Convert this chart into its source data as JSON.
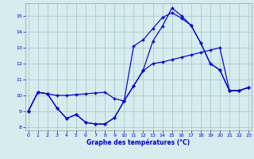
{
  "xlabel": "Graphe des températures (°C)",
  "xlim": [
    -0.3,
    23.3
  ],
  "ylim": [
    7.8,
    15.8
  ],
  "yticks": [
    8,
    9,
    10,
    11,
    12,
    13,
    14,
    15
  ],
  "xticks": [
    0,
    1,
    2,
    3,
    4,
    5,
    6,
    7,
    8,
    9,
    10,
    11,
    12,
    13,
    14,
    15,
    16,
    17,
    18,
    19,
    20,
    21,
    22,
    23
  ],
  "bg_color": "#d6ecee",
  "grid_color": "#aaccd0",
  "line_color": "#0000cc",
  "line1_x": [
    0,
    1,
    2,
    3,
    4,
    5,
    6,
    7,
    8,
    9,
    10,
    11,
    12,
    13,
    14,
    15,
    16,
    17,
    18,
    19,
    20,
    21,
    22,
    23
  ],
  "line1_y": [
    9.0,
    10.2,
    10.1,
    10.0,
    10.0,
    10.05,
    10.1,
    10.15,
    10.2,
    9.8,
    9.65,
    10.6,
    11.55,
    12.0,
    12.1,
    12.25,
    12.4,
    12.55,
    12.7,
    12.85,
    13.0,
    10.3,
    10.3,
    10.5
  ],
  "line2_x": [
    0,
    1,
    2,
    3,
    4,
    5,
    6,
    7,
    8,
    9,
    10,
    11,
    12,
    13,
    14,
    15,
    16,
    17,
    18,
    19,
    20,
    21,
    22,
    23
  ],
  "line2_y": [
    9.0,
    10.2,
    10.1,
    9.2,
    8.55,
    8.8,
    8.3,
    8.2,
    8.2,
    8.6,
    9.65,
    13.1,
    13.5,
    14.2,
    14.9,
    15.2,
    14.85,
    14.4,
    13.3,
    12.0,
    11.6,
    10.3,
    10.3,
    10.5
  ],
  "line3_x": [
    0,
    1,
    2,
    3,
    4,
    5,
    6,
    7,
    8,
    9,
    10,
    11,
    12,
    13,
    14,
    15,
    16,
    17,
    18,
    19,
    20,
    21,
    22,
    23
  ],
  "line3_y": [
    9.0,
    10.2,
    10.1,
    9.2,
    8.55,
    8.8,
    8.3,
    8.2,
    8.2,
    8.6,
    9.65,
    10.6,
    11.6,
    13.4,
    14.35,
    15.5,
    15.0,
    14.4,
    13.3,
    12.0,
    11.6,
    10.3,
    10.3,
    10.5
  ]
}
